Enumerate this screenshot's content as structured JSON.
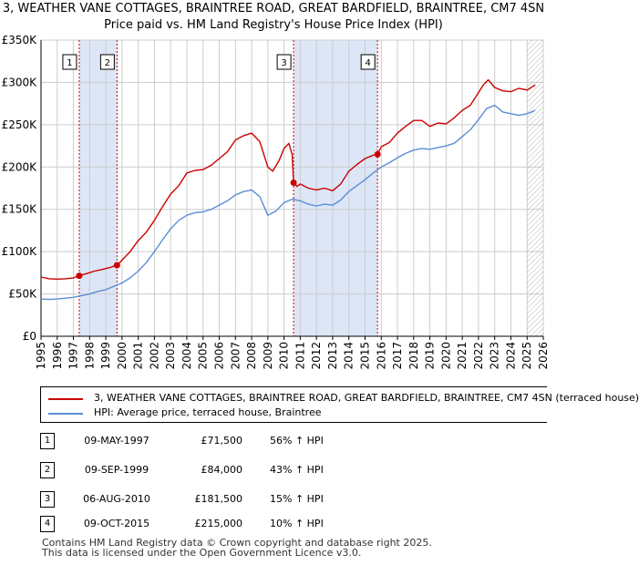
{
  "title_line1": "3, WEATHER VANE COTTAGES, BRAINTREE ROAD, GREAT BARDFIELD, BRAINTREE, CM7 4SN",
  "title_line2": "Price paid vs. HM Land Registry's House Price Index (HPI)",
  "chart_data": {
    "type": "line",
    "title": "3, WEATHER VANE COTTAGES, BRAINTREE ROAD, GREAT BARDFIELD, BRAINTREE, CM7 4SN",
    "subtitle": "Price paid vs. HM Land Registry's House Price Index (HPI)",
    "xlabel": "",
    "ylabel": "",
    "xlim": [
      1995,
      2026
    ],
    "ylim": [
      0,
      350000
    ],
    "ytick_values": [
      0,
      50000,
      100000,
      150000,
      200000,
      250000,
      300000,
      350000
    ],
    "ytick_labels": [
      "£0",
      "£50K",
      "£100K",
      "£150K",
      "£200K",
      "£250K",
      "£300K",
      "£350K"
    ],
    "xtick_labels": [
      "1995",
      "1996",
      "1997",
      "1998",
      "1999",
      "2000",
      "2001",
      "2002",
      "2003",
      "2004",
      "2005",
      "2006",
      "2007",
      "2008",
      "2009",
      "2010",
      "2011",
      "2012",
      "2013",
      "2014",
      "2015",
      "2016",
      "2017",
      "2018",
      "2019",
      "2020",
      "2021",
      "2022",
      "2023",
      "2024",
      "2025",
      "2026"
    ],
    "grid": true,
    "colors": {
      "property": "#cc0000",
      "hpi": "#5b8ed6",
      "shade": "#dde6f7",
      "vline": "#cc0000",
      "grid": "#cccccc",
      "hatch": "#888888"
    },
    "shaded_periods": [
      [
        1997.36,
        1999.69
      ],
      [
        2010.59,
        2015.77
      ]
    ],
    "hatch_start": 2025.0,
    "series": [
      {
        "name": "3, WEATHER VANE COTTAGES, BRAINTREE ROAD, GREAT BARDFIELD, BRAINTREE, CM7 4SN (terraced house)",
        "x": [
          1995.0,
          1995.5,
          1996.0,
          1996.5,
          1997.0,
          1997.36,
          1997.8,
          1998.3,
          1998.8,
          1999.2,
          1999.69,
          2000.0,
          2000.5,
          2001.0,
          2001.5,
          2002.0,
          2002.5,
          2003.0,
          2003.5,
          2004.0,
          2004.5,
          2005.0,
          2005.5,
          2006.0,
          2006.5,
          2007.0,
          2007.5,
          2008.0,
          2008.5,
          2009.0,
          2009.3,
          2009.7,
          2010.0,
          2010.3,
          2010.5,
          2010.59,
          2010.8,
          2011.0,
          2011.5,
          2012.0,
          2012.5,
          2013.0,
          2013.5,
          2014.0,
          2014.5,
          2015.0,
          2015.5,
          2015.77,
          2016.0,
          2016.5,
          2017.0,
          2017.5,
          2018.0,
          2018.5,
          2019.0,
          2019.5,
          2020.0,
          2020.5,
          2021.0,
          2021.5,
          2022.0,
          2022.3,
          2022.6,
          2023.0,
          2023.5,
          2024.0,
          2024.5,
          2025.0,
          2025.5
        ],
        "values": [
          70000,
          68000,
          67500,
          68000,
          69000,
          71500,
          74000,
          77000,
          79000,
          81000,
          84000,
          90000,
          100000,
          113000,
          123000,
          137000,
          153000,
          168000,
          178000,
          193000,
          196000,
          197000,
          202000,
          210000,
          218000,
          232000,
          237000,
          240000,
          230000,
          200000,
          195000,
          208000,
          222000,
          228000,
          215000,
          181500,
          177000,
          180000,
          175000,
          173000,
          175000,
          172000,
          180000,
          195000,
          203000,
          210000,
          214000,
          215000,
          224000,
          229000,
          240000,
          248000,
          255000,
          255000,
          248000,
          252000,
          251000,
          258000,
          267000,
          273000,
          288000,
          297000,
          303000,
          294000,
          290000,
          289000,
          293000,
          291000,
          297000
        ]
      },
      {
        "name": "HPI: Average price, terraced house, Braintree",
        "x": [
          1995.0,
          1995.5,
          1996.0,
          1996.5,
          1997.0,
          1997.5,
          1998.0,
          1998.5,
          1999.0,
          1999.5,
          2000.0,
          2000.5,
          2001.0,
          2001.5,
          2002.0,
          2002.5,
          2003.0,
          2003.5,
          2004.0,
          2004.5,
          2005.0,
          2005.5,
          2006.0,
          2006.5,
          2007.0,
          2007.5,
          2008.0,
          2008.5,
          2009.0,
          2009.5,
          2010.0,
          2010.5,
          2011.0,
          2011.5,
          2012.0,
          2012.5,
          2013.0,
          2013.5,
          2014.0,
          2014.5,
          2015.0,
          2015.5,
          2016.0,
          2016.5,
          2017.0,
          2017.5,
          2018.0,
          2018.5,
          2019.0,
          2019.5,
          2020.0,
          2020.5,
          2021.0,
          2021.5,
          2022.0,
          2022.5,
          2023.0,
          2023.5,
          2024.0,
          2024.5,
          2025.0,
          2025.5
        ],
        "values": [
          44000,
          43500,
          44000,
          45000,
          46000,
          48000,
          50000,
          53000,
          55000,
          59000,
          63000,
          69000,
          77000,
          87000,
          100000,
          114000,
          127000,
          137000,
          143000,
          146000,
          147000,
          150000,
          155000,
          160000,
          167000,
          171000,
          173000,
          165000,
          143000,
          148000,
          158000,
          162000,
          160000,
          156000,
          154000,
          156000,
          155000,
          161000,
          171000,
          178000,
          185000,
          193000,
          200000,
          205000,
          211000,
          216000,
          220000,
          222000,
          221000,
          223000,
          225000,
          228000,
          236000,
          244000,
          256000,
          269000,
          273000,
          265000,
          263000,
          261000,
          263000,
          267000
        ]
      }
    ],
    "sales": [
      {
        "label": "1",
        "x": 1997.36,
        "value": 71500
      },
      {
        "label": "2",
        "x": 1999.69,
        "value": 84000
      },
      {
        "label": "3",
        "x": 2010.59,
        "value": 181500
      },
      {
        "label": "4",
        "x": 2015.77,
        "value": 215000
      }
    ]
  },
  "legend": {
    "items": [
      {
        "label": "3, WEATHER VANE COTTAGES, BRAINTREE ROAD, GREAT BARDFIELD, BRAINTREE, CM7 4SN (terraced house)",
        "color": "#cc0000"
      },
      {
        "label": "HPI: Average price, terraced house, Braintree",
        "color": "#5b8ed6"
      }
    ]
  },
  "transactions": [
    {
      "num": "1",
      "date": "09-MAY-1997",
      "price": "£71,500",
      "hpi": "56% ↑ HPI"
    },
    {
      "num": "2",
      "date": "09-SEP-1999",
      "price": "£84,000",
      "hpi": "43% ↑ HPI"
    },
    {
      "num": "3",
      "date": "06-AUG-2010",
      "price": "£181,500",
      "hpi": "15% ↑ HPI"
    },
    {
      "num": "4",
      "date": "09-OCT-2015",
      "price": "£215,000",
      "hpi": "10% ↑ HPI"
    }
  ],
  "footer": {
    "line1": "Contains HM Land Registry data © Crown copyright and database right 2025.",
    "line2": "This data is licensed under the Open Government Licence v3.0."
  }
}
